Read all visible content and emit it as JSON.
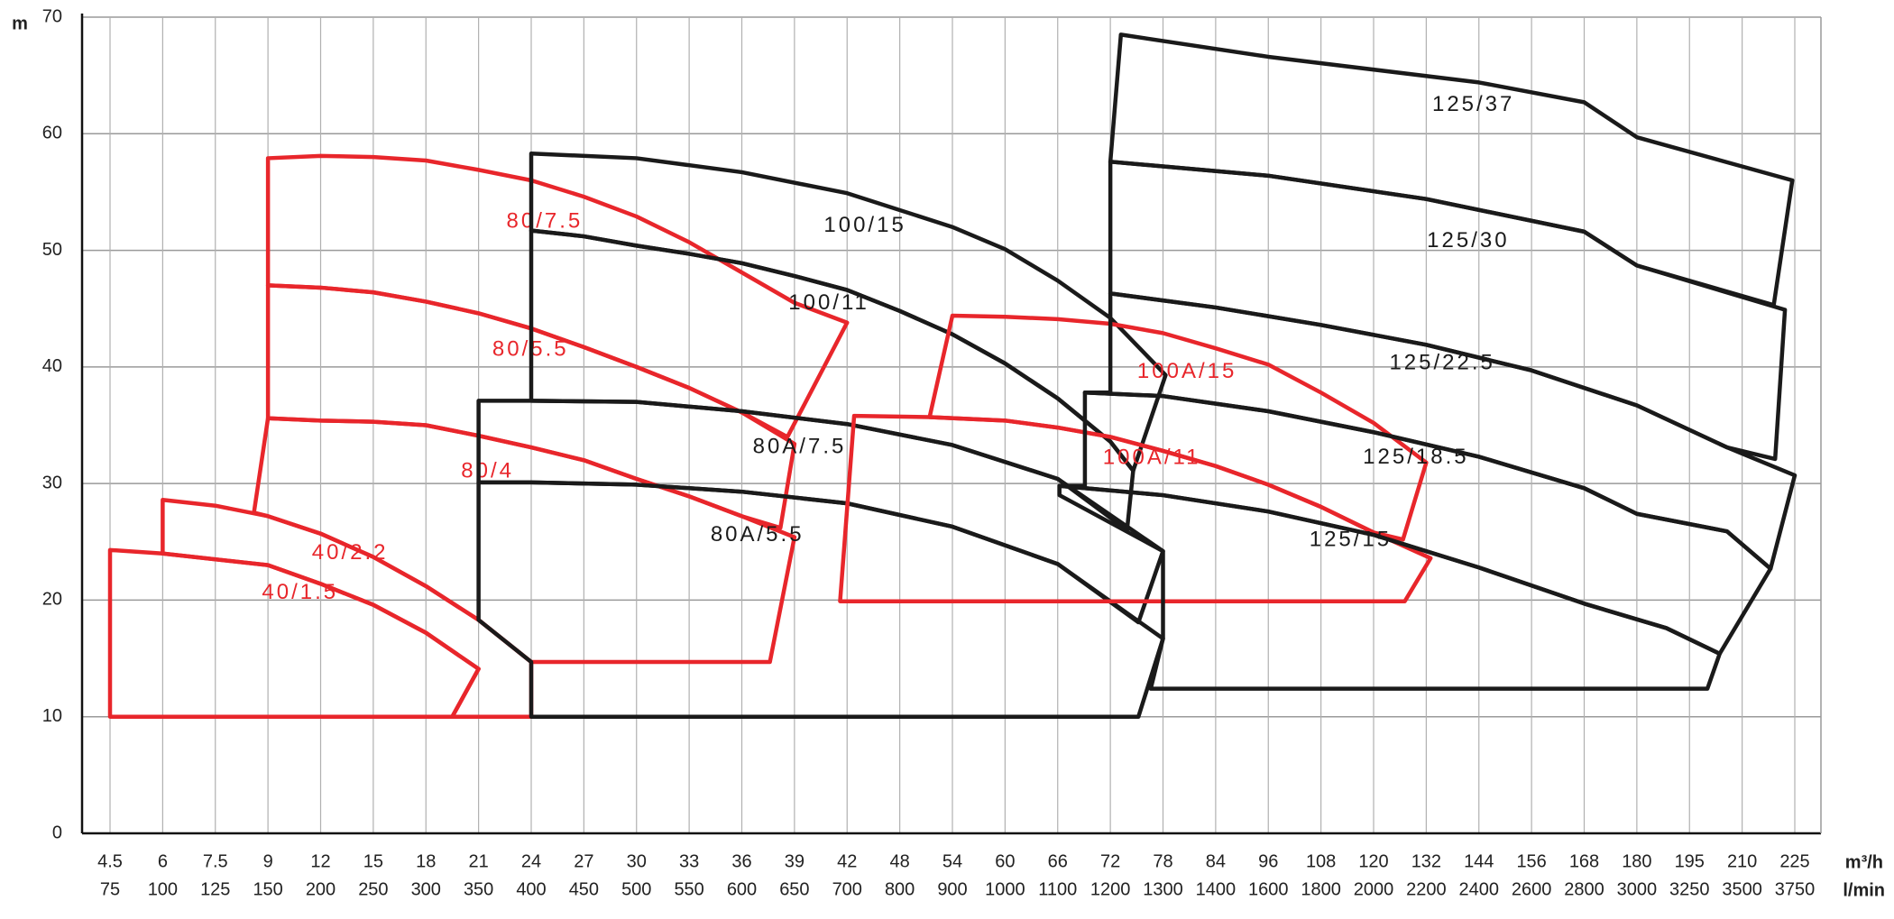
{
  "chart_data": {
    "type": "region",
    "ylabel": "m",
    "xlabel": "m³/h",
    "x2label": "l/min",
    "ylim": [
      0,
      70
    ],
    "yticks": [
      0,
      10,
      20,
      30,
      40,
      50,
      60,
      70
    ],
    "grid": true,
    "xlim": [
      4.5,
      225
    ],
    "xticks": [
      4.5,
      6,
      7.5,
      9,
      12,
      15,
      18,
      21,
      24,
      27,
      30,
      33,
      36,
      39,
      42,
      48,
      54,
      60,
      66,
      72,
      78,
      84,
      96,
      108,
      120,
      132,
      144,
      156,
      168,
      180,
      195,
      210,
      225
    ],
    "x2ticks": [
      75,
      100,
      125,
      150,
      200,
      250,
      300,
      350,
      400,
      450,
      500,
      550,
      600,
      650,
      700,
      800,
      900,
      1000,
      1100,
      1200,
      1300,
      1400,
      1600,
      1800,
      2000,
      2200,
      2400,
      2600,
      2800,
      3000,
      3250,
      3500,
      3750
    ],
    "series": [
      {
        "name": "40/1.5",
        "color": "#e8262b",
        "x": [
          4.5,
          6,
          9,
          12,
          15,
          18,
          21,
          19.5,
          4.5
        ],
        "y": [
          24.3,
          24,
          23,
          21.4,
          19.6,
          17.2,
          14.1,
          10,
          10
        ]
      },
      {
        "name": "40/2.2",
        "color": "#e8262b",
        "x": [
          6,
          6,
          7.5,
          9,
          12,
          15,
          18,
          21,
          24,
          24,
          19.5,
          21,
          18,
          15,
          12,
          9,
          6
        ],
        "y": [
          24,
          28.6,
          28.1,
          27.2,
          25.7,
          23.7,
          21.2,
          18.3,
          14.7,
          10,
          10,
          14.1,
          17.2,
          19.6,
          21.4,
          23,
          24
        ]
      },
      {
        "name": "80/4",
        "color": "#e8262b",
        "x": [
          8.6,
          9,
          12,
          15,
          18,
          21,
          24,
          27,
          30,
          33,
          36,
          39,
          37.6,
          24,
          21,
          18,
          15,
          12,
          9
        ],
        "y": [
          27.5,
          35.6,
          35.4,
          35.3,
          35,
          34.1,
          33.1,
          32,
          30.4,
          28.9,
          27.2,
          25.4,
          14.7,
          14.7,
          18.3,
          21.2,
          23.7,
          25.7,
          27.2
        ]
      },
      {
        "name": "80/5.5",
        "color": "#e8262b",
        "x": [
          9,
          9,
          12,
          15,
          18,
          21,
          24,
          27,
          30,
          33,
          36,
          39,
          38.2,
          36,
          33,
          30,
          27,
          24,
          21,
          18,
          15,
          12
        ],
        "y": [
          35.6,
          47,
          46.8,
          46.4,
          45.6,
          44.6,
          43.3,
          41.7,
          40,
          38.2,
          36.1,
          33.4,
          26.2,
          27.2,
          28.9,
          30.4,
          32,
          33.1,
          34.1,
          35,
          35.3,
          35.4
        ]
      },
      {
        "name": "80/7.5",
        "color": "#e8262b",
        "x": [
          9,
          9,
          12,
          15,
          18,
          21,
          24,
          27,
          30,
          33,
          36,
          39,
          42,
          38.6,
          36,
          33,
          30,
          27,
          24,
          21,
          18,
          15,
          12
        ],
        "y": [
          47,
          57.9,
          58.1,
          58,
          57.7,
          56.9,
          56,
          54.6,
          52.9,
          50.7,
          48.1,
          45.5,
          43.8,
          34,
          36.1,
          38.2,
          40,
          41.7,
          43.3,
          44.6,
          45.6,
          46.4,
          46.8
        ]
      },
      {
        "name": "80A/5.5",
        "color": "#1a1a1a",
        "x": [
          21,
          24,
          30,
          36,
          42,
          54,
          66,
          78,
          75.2,
          24,
          24,
          21
        ],
        "y": [
          30.1,
          30.1,
          29.9,
          29.3,
          28.3,
          26.3,
          23.1,
          16.7,
          10,
          10,
          14.7,
          18.3
        ]
      },
      {
        "name": "80A/7.5",
        "color": "#1a1a1a",
        "x": [
          21,
          24,
          30,
          36,
          42,
          54,
          66,
          78,
          75.2,
          66,
          54,
          42,
          36,
          30,
          24,
          21
        ],
        "y": [
          37.1,
          37.1,
          37,
          36.2,
          35.1,
          33.3,
          30.4,
          24.2,
          18.1,
          23.1,
          26.3,
          28.3,
          29.3,
          29.9,
          30.1,
          30.1
        ]
      },
      {
        "name": "100/11",
        "color": "#1a1a1a",
        "x": [
          24,
          24,
          27,
          30,
          33,
          36,
          39,
          42,
          48,
          54,
          60,
          66,
          72,
          74.6,
          73.9,
          66,
          54,
          42,
          36,
          30,
          24
        ],
        "y": [
          37.1,
          51.7,
          51.2,
          50.4,
          49.7,
          48.9,
          47.8,
          46.6,
          44.8,
          42.8,
          40.3,
          37.3,
          33.6,
          31.1,
          26,
          30.4,
          33.3,
          35.1,
          36.2,
          37,
          37.1
        ]
      },
      {
        "name": "100/15",
        "color": "#1a1a1a",
        "x": [
          24,
          24,
          30,
          36,
          42,
          54,
          60,
          66,
          72,
          78.3,
          74.6,
          72,
          66,
          60,
          54,
          48,
          42,
          39,
          36,
          33,
          30,
          27
        ],
        "y": [
          51.7,
          58.3,
          57.9,
          56.7,
          54.9,
          52,
          50.1,
          47.4,
          44.2,
          39.3,
          31.1,
          33.6,
          37.3,
          40.3,
          42.8,
          44.8,
          46.6,
          47.8,
          48.9,
          49.7,
          50.4,
          51.2
        ]
      },
      {
        "name": "100A/11",
        "color": "#e8262b",
        "x": [
          41.6,
          42.8,
          51.4,
          60,
          66,
          72,
          78,
          84,
          96,
          108,
          120,
          133,
          127.1
        ],
        "y": [
          19.9,
          35.8,
          35.7,
          35.4,
          34.8,
          34,
          32.8,
          31.5,
          29.9,
          28,
          25.8,
          23.6,
          19.9
        ]
      },
      {
        "name": "100A/15",
        "color": "#e8262b",
        "x": [
          51.4,
          54,
          60,
          66,
          72,
          78,
          84,
          96,
          108,
          120,
          132,
          126.7,
          120,
          108,
          96,
          84,
          78,
          72,
          66,
          60
        ],
        "y": [
          35.7,
          44.4,
          44.3,
          44.1,
          43.7,
          42.9,
          41.6,
          40.2,
          37.8,
          35.2,
          31.8,
          25.2,
          25.8,
          28,
          29.9,
          31.5,
          32.8,
          34,
          34.8,
          35.4
        ]
      },
      {
        "name": "125/15",
        "color": "#1a1a1a",
        "x": [
          66.2,
          66.2,
          78,
          96,
          120,
          144,
          168,
          188.4,
          203.6,
          200.1,
          76.6,
          78,
          78
        ],
        "y": [
          29,
          29.8,
          29,
          27.6,
          25.6,
          22.8,
          19.7,
          17.6,
          15.4,
          12.4,
          12.4,
          16.7,
          24.2
        ]
      },
      {
        "name": "125/18.5",
        "color": "#1a1a1a",
        "x": [
          69.1,
          69.1,
          78,
          96,
          120,
          144,
          168,
          180,
          205.7,
          218.1,
          203.6,
          188.4,
          168,
          144,
          120,
          96,
          78,
          66.2
        ],
        "y": [
          29.8,
          37.8,
          37.5,
          36.2,
          34.4,
          32.3,
          29.6,
          27.4,
          25.9,
          22.7,
          15.4,
          17.6,
          19.7,
          22.8,
          25.6,
          27.6,
          29,
          29.8
        ]
      },
      {
        "name": "125/22.5",
        "color": "#1a1a1a",
        "x": [
          72,
          72,
          84,
          108,
          132,
          156,
          180,
          205.7,
          225,
          218.1,
          205.7,
          180,
          168,
          144,
          120,
          96,
          78,
          69.1
        ],
        "y": [
          37.8,
          46.3,
          45.1,
          43.6,
          41.9,
          39.7,
          36.7,
          33.1,
          30.7,
          22.7,
          25.9,
          27.4,
          29.6,
          32.3,
          34.4,
          36.2,
          37.5,
          37.8
        ]
      },
      {
        "name": "125/30",
        "color": "#1a1a1a",
        "x": [
          72,
          72,
          96,
          132,
          168,
          180,
          222.2,
          219.4,
          205.7,
          180,
          156,
          132,
          108,
          84
        ],
        "y": [
          46.3,
          57.6,
          56.4,
          54.4,
          51.6,
          48.7,
          44.9,
          32.1,
          33.1,
          36.7,
          39.7,
          41.9,
          43.6,
          45.1
        ]
      },
      {
        "name": "125/37",
        "color": "#1a1a1a",
        "x": [
          72,
          73.2,
          96,
          144,
          168,
          180,
          224.3,
          219,
          180,
          168,
          132,
          96
        ],
        "y": [
          57.6,
          68.5,
          66.6,
          64.4,
          62.7,
          59.7,
          56,
          45.3,
          48.7,
          51.6,
          54.4,
          56.4
        ]
      }
    ]
  }
}
